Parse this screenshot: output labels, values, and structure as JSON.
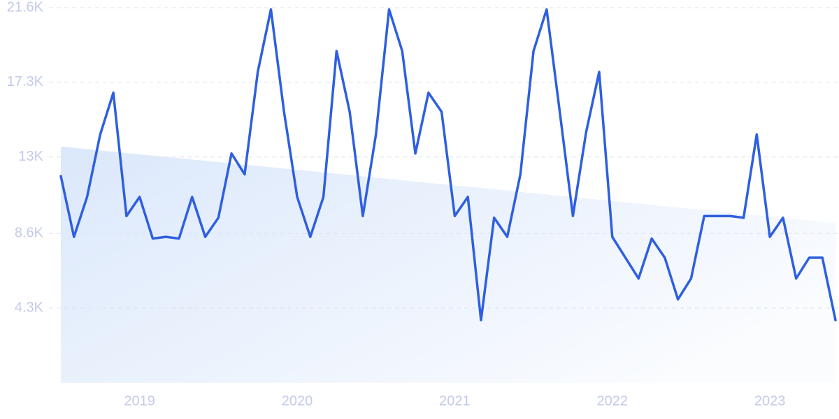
{
  "chart_data": {
    "type": "line",
    "categories": [
      null,
      null,
      null,
      null,
      null,
      null,
      "2019",
      null,
      null,
      null,
      null,
      null,
      null,
      null,
      null,
      null,
      null,
      null,
      "2020",
      null,
      null,
      null,
      null,
      null,
      null,
      null,
      null,
      null,
      null,
      null,
      "2021",
      null,
      null,
      null,
      null,
      null,
      null,
      null,
      null,
      null,
      null,
      null,
      "2022",
      null,
      null,
      null,
      null,
      null,
      null,
      null,
      null,
      null,
      null,
      null,
      "2023",
      null,
      null,
      null,
      null,
      null
    ],
    "series": [
      {
        "color": "#2f5fe0",
        "values": [
          11900,
          8400,
          10700,
          14300,
          16700,
          9600,
          10700,
          8300,
          8400,
          8300,
          10700,
          8400,
          9500,
          13200,
          12000,
          17900,
          21500,
          15600,
          10700,
          8400,
          10700,
          19100,
          15600,
          9600,
          14300,
          21500,
          19100,
          13200,
          16700,
          15600,
          9600,
          10700,
          3600,
          9500,
          8400,
          12000,
          19100,
          21500,
          15600,
          9600,
          14400,
          17900,
          8400,
          7200,
          6000,
          8300,
          7200,
          4800,
          6000,
          9600,
          9600,
          9600,
          9500,
          14300,
          8400,
          9500,
          6000,
          7200,
          7200,
          3600
        ]
      }
    ],
    "trend_values": [
      13600,
      9200
    ],
    "trend_color": "#dbe8fb",
    "ylim": [
      0,
      21600
    ],
    "yticks": [
      {
        "value": 4300,
        "label": "4.3K"
      },
      {
        "value": 8600,
        "label": "8.6K"
      },
      {
        "value": 13000,
        "label": "13K"
      },
      {
        "value": 17300,
        "label": "17.3K"
      },
      {
        "value": 21600,
        "label": "21.6K"
      }
    ],
    "grid": true
  }
}
